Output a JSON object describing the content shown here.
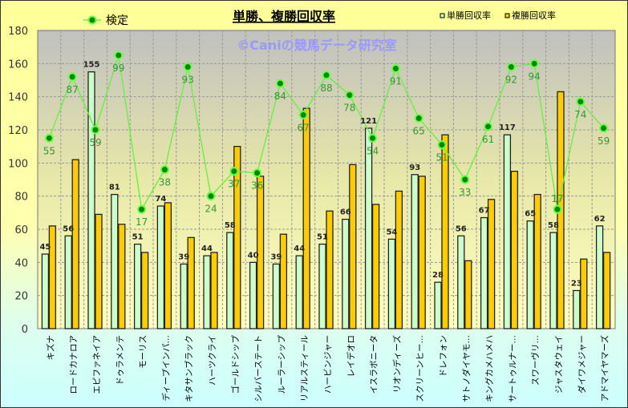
{
  "chart_data": {
    "type": "bar",
    "title": "単勝、複勝回収率",
    "watermark": "©Caniの競馬データ研究室",
    "ylim": [
      0,
      180
    ],
    "yticks": [
      0,
      20,
      40,
      60,
      80,
      100,
      120,
      140,
      160,
      180
    ],
    "grid": true,
    "legend_placement": "top",
    "categories": [
      "キズナ",
      "ロードカナロア",
      "エピファネイア",
      "ドゥラメンテ",
      "モーリス",
      "ディープインパ…",
      "キタサンブラック",
      "ハーツクライ",
      "ゴールドシップ",
      "シルバーステート",
      "ルーラーシップ",
      "リアルスティール",
      "ハービンジャー",
      "レイデオロ",
      "イスラボニータ",
      "リオンディーズ",
      "スクリーンヒー…",
      "ドレフォン",
      "サトノダイヤモ…",
      "キングカメハメハ",
      "サートゥルナー…",
      "スワーヴリ…",
      "ジャスタウェイ",
      "ダイワメジャー",
      "アドマイヤマーズ"
    ],
    "series": [
      {
        "name": "単勝回収率",
        "type": "bar",
        "color": "#ccffcc",
        "values": [
          45,
          56,
          155,
          81,
          51,
          74,
          39,
          44,
          58,
          40,
          39,
          44,
          51,
          66,
          121,
          54,
          93,
          28,
          56,
          67,
          117,
          65,
          58,
          23,
          62
        ]
      },
      {
        "name": "複勝回収率",
        "type": "bar",
        "color": "#ffcc00",
        "values": [
          62,
          102,
          69,
          63,
          46,
          76,
          55,
          46,
          110,
          92,
          57,
          133,
          71,
          99,
          75,
          83,
          92,
          117,
          41,
          78,
          95,
          81,
          143,
          42,
          46
        ]
      },
      {
        "name": "検定",
        "type": "line",
        "color": "#00aa00",
        "values": [
          115,
          152,
          120,
          165,
          72,
          96,
          158,
          80,
          95,
          94,
          148,
          129,
          153,
          141,
          115,
          157,
          127,
          111,
          90,
          122,
          158,
          160,
          72,
          137,
          121
        ],
        "labels": [
          55,
          87,
          59,
          99,
          17,
          38,
          93,
          24,
          37,
          36,
          84,
          67,
          88,
          78,
          54,
          91,
          65,
          51,
          33,
          61,
          92,
          94,
          17,
          74,
          59
        ]
      }
    ]
  }
}
